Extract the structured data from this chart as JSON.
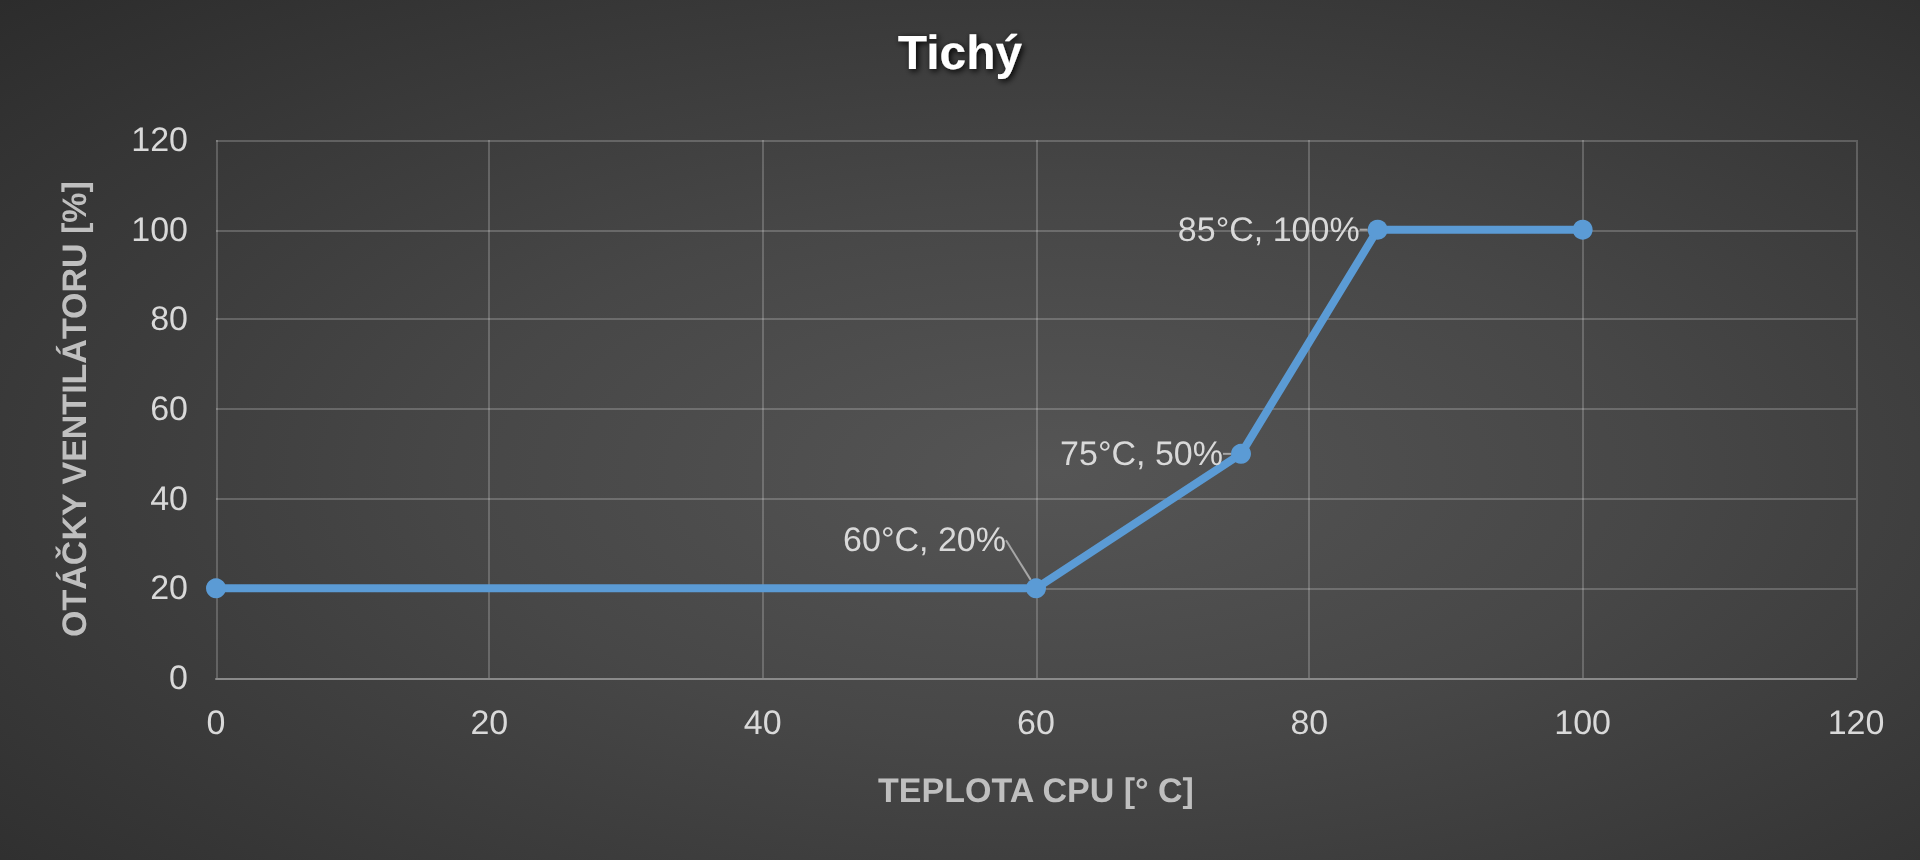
{
  "chart_data": {
    "type": "line",
    "title": "Tichý",
    "xlabel": "TEPLOTA CPU [° C]",
    "ylabel": "OTÁČKY VENTILÁTORU [%]",
    "x": [
      0,
      60,
      75,
      85,
      100
    ],
    "values": [
      20,
      20,
      50,
      100,
      100
    ],
    "color": "#5b9bd5",
    "xlim": [
      0,
      120
    ],
    "xticks": [
      0,
      20,
      40,
      60,
      80,
      100,
      120
    ],
    "ylim": [
      0,
      120
    ],
    "yticks": [
      0,
      20,
      40,
      60,
      80,
      100,
      120
    ],
    "grid": true,
    "marker": "circle",
    "line_style": "solid",
    "annotations": [
      {
        "text": "60°C, 20%",
        "x": 60,
        "y": 20
      },
      {
        "text": "75°C, 50%",
        "x": 75,
        "y": 50
      },
      {
        "text": "85°C, 100%",
        "x": 85,
        "y": 100
      }
    ]
  }
}
